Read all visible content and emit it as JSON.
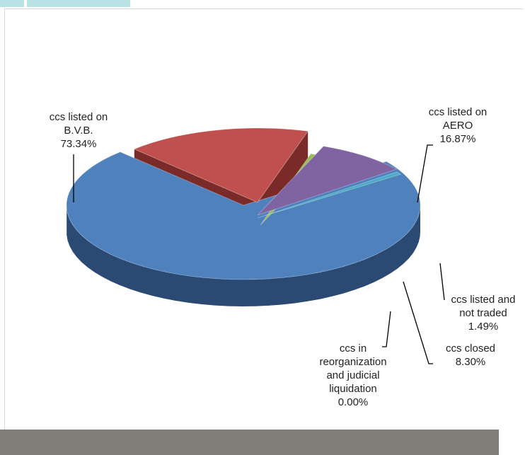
{
  "chart_data": {
    "type": "pie",
    "style": "3d-exploded",
    "slices": [
      {
        "name_lines": [
          "ccs listed on",
          "B.V.B."
        ],
        "value_label": "73.34%",
        "value": 73.34,
        "color": "#4f81bd",
        "side_color": "#2a4a73"
      },
      {
        "name_lines": [
          "ccs listed on",
          "AERO"
        ],
        "value_label": "16.87%",
        "value": 16.87,
        "color": "#c0504d",
        "side_color": "#7a2a28"
      },
      {
        "name_lines": [
          "ccs listed and",
          "not traded"
        ],
        "value_label": "1.49%",
        "value": 1.49,
        "color": "#9bbb59",
        "side_color": "#4a6124"
      },
      {
        "name_lines": [
          "ccs closed"
        ],
        "value_label": "8.30%",
        "value": 8.3,
        "color": "#8064a2",
        "side_color": "#3f2f55"
      },
      {
        "name_lines": [
          "ccs in",
          "reorganization",
          "and judicial",
          "liquidation"
        ],
        "value_label": "0.00%",
        "value": 0.0,
        "color": "#4bacc6",
        "side_color": "#1f4a55"
      }
    ]
  }
}
